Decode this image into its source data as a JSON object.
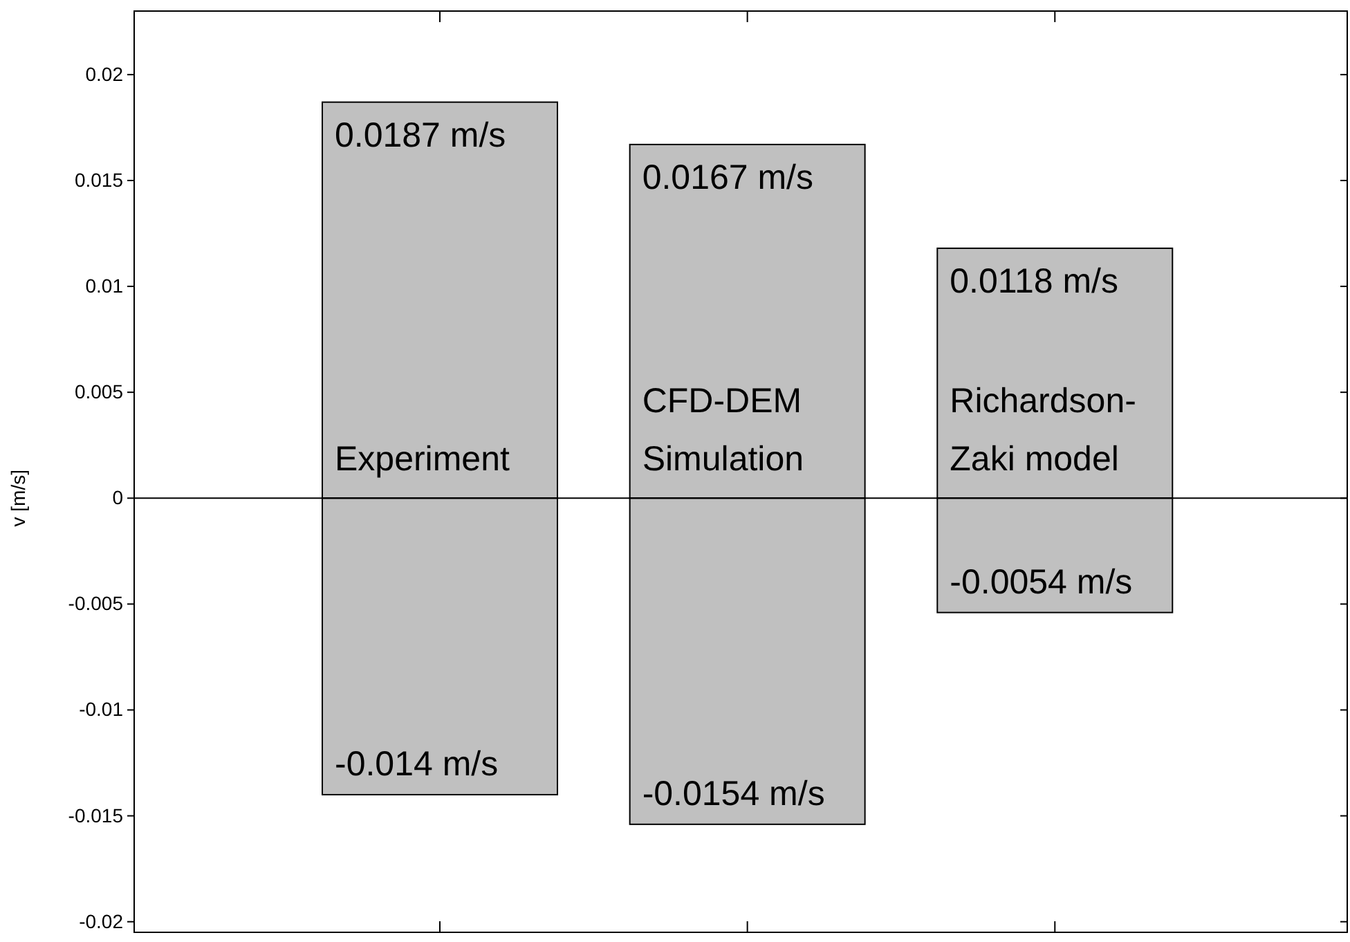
{
  "chart_data": {
    "type": "bar",
    "stacked": true,
    "ylabel": "v [m/s]",
    "tick_labels": "y",
    "categories": [
      "Experiment",
      "CFD-DEM Simulation",
      "Richardson-Zaki model"
    ],
    "series": [
      {
        "color": "#c0c0c0",
        "values": [
          0.0187,
          0.0167,
          0.0118
        ],
        "value_labels": [
          "0.0187 m/s",
          "0.0167 m/s",
          "0.0118 m/s"
        ]
      },
      {
        "color": "#c0c0c0",
        "values": [
          -0.014,
          -0.0154,
          -0.0054
        ],
        "value_labels": [
          "-0.014 m/s",
          "-0.0154 m/s",
          "-0.0054 m/s"
        ]
      }
    ],
    "ylim": [
      -0.0205,
      0.023
    ],
    "yticks": [
      -0.02,
      -0.015,
      -0.01,
      -0.005,
      0,
      0.005,
      0.01,
      0.015,
      0.02
    ],
    "grid": false
  }
}
